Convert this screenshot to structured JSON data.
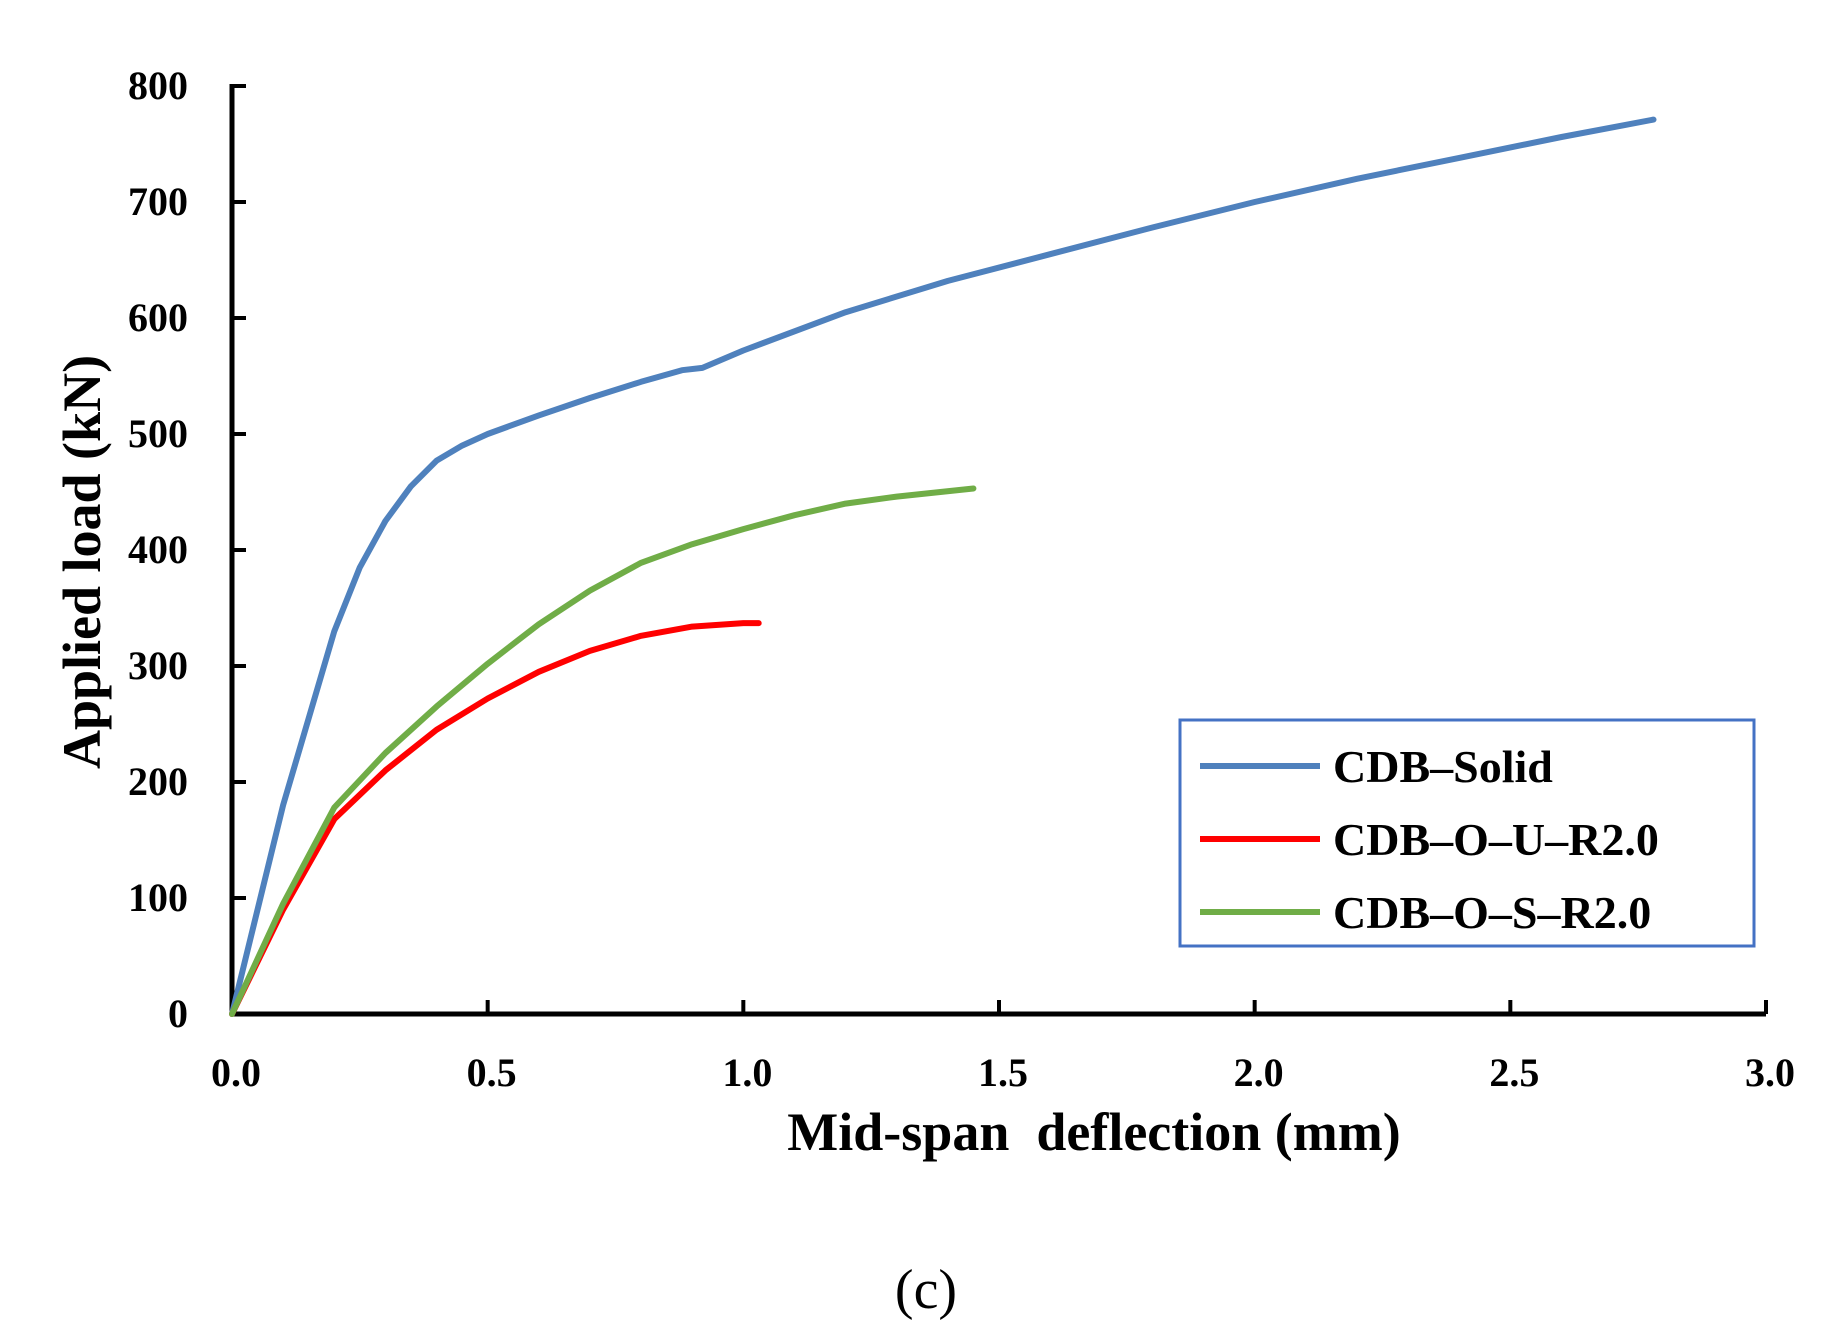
{
  "chart_data": {
    "type": "line",
    "xlabel": "Mid-span  deflection (mm)",
    "ylabel": "Applied load (kN)",
    "xlim": [
      0,
      3
    ],
    "ylim": [
      0,
      800
    ],
    "x_ticks": [
      "0.0",
      "0.5",
      "1.0",
      "1.5",
      "2.0",
      "2.5",
      "3.0"
    ],
    "y_ticks": [
      "0",
      "100",
      "200",
      "300",
      "400",
      "500",
      "600",
      "700",
      "800"
    ],
    "grid": false,
    "legend_position": "bottom-right",
    "series": [
      {
        "name": "CDB–Solid",
        "color": "#4f81bd",
        "points": [
          [
            0,
            0
          ],
          [
            0.1,
            180
          ],
          [
            0.2,
            330
          ],
          [
            0.25,
            385
          ],
          [
            0.3,
            425
          ],
          [
            0.35,
            455
          ],
          [
            0.4,
            477
          ],
          [
            0.45,
            490
          ],
          [
            0.5,
            500
          ],
          [
            0.6,
            516
          ],
          [
            0.7,
            531
          ],
          [
            0.8,
            545
          ],
          [
            0.88,
            555
          ],
          [
            0.92,
            557
          ],
          [
            1.0,
            572
          ],
          [
            1.2,
            605
          ],
          [
            1.4,
            632
          ],
          [
            1.6,
            655
          ],
          [
            1.8,
            678
          ],
          [
            2.0,
            700
          ],
          [
            2.2,
            720
          ],
          [
            2.4,
            738
          ],
          [
            2.6,
            756
          ],
          [
            2.78,
            771
          ]
        ]
      },
      {
        "name": "CDB–O–U–R2.0",
        "color": "#ff0000",
        "points": [
          [
            0,
            0
          ],
          [
            0.1,
            90
          ],
          [
            0.2,
            168
          ],
          [
            0.3,
            210
          ],
          [
            0.4,
            245
          ],
          [
            0.5,
            272
          ],
          [
            0.6,
            295
          ],
          [
            0.7,
            313
          ],
          [
            0.8,
            326
          ],
          [
            0.9,
            334
          ],
          [
            1.0,
            337
          ],
          [
            1.03,
            337
          ]
        ]
      },
      {
        "name": "CDB–O–S–R2.0",
        "color": "#70ad47",
        "points": [
          [
            0,
            0
          ],
          [
            0.1,
            95
          ],
          [
            0.2,
            178
          ],
          [
            0.3,
            225
          ],
          [
            0.4,
            265
          ],
          [
            0.5,
            302
          ],
          [
            0.6,
            336
          ],
          [
            0.7,
            365
          ],
          [
            0.8,
            389
          ],
          [
            0.9,
            405
          ],
          [
            1.0,
            418
          ],
          [
            1.1,
            430
          ],
          [
            1.2,
            440
          ],
          [
            1.3,
            446
          ],
          [
            1.45,
            453
          ]
        ]
      }
    ]
  },
  "caption": "(c)"
}
